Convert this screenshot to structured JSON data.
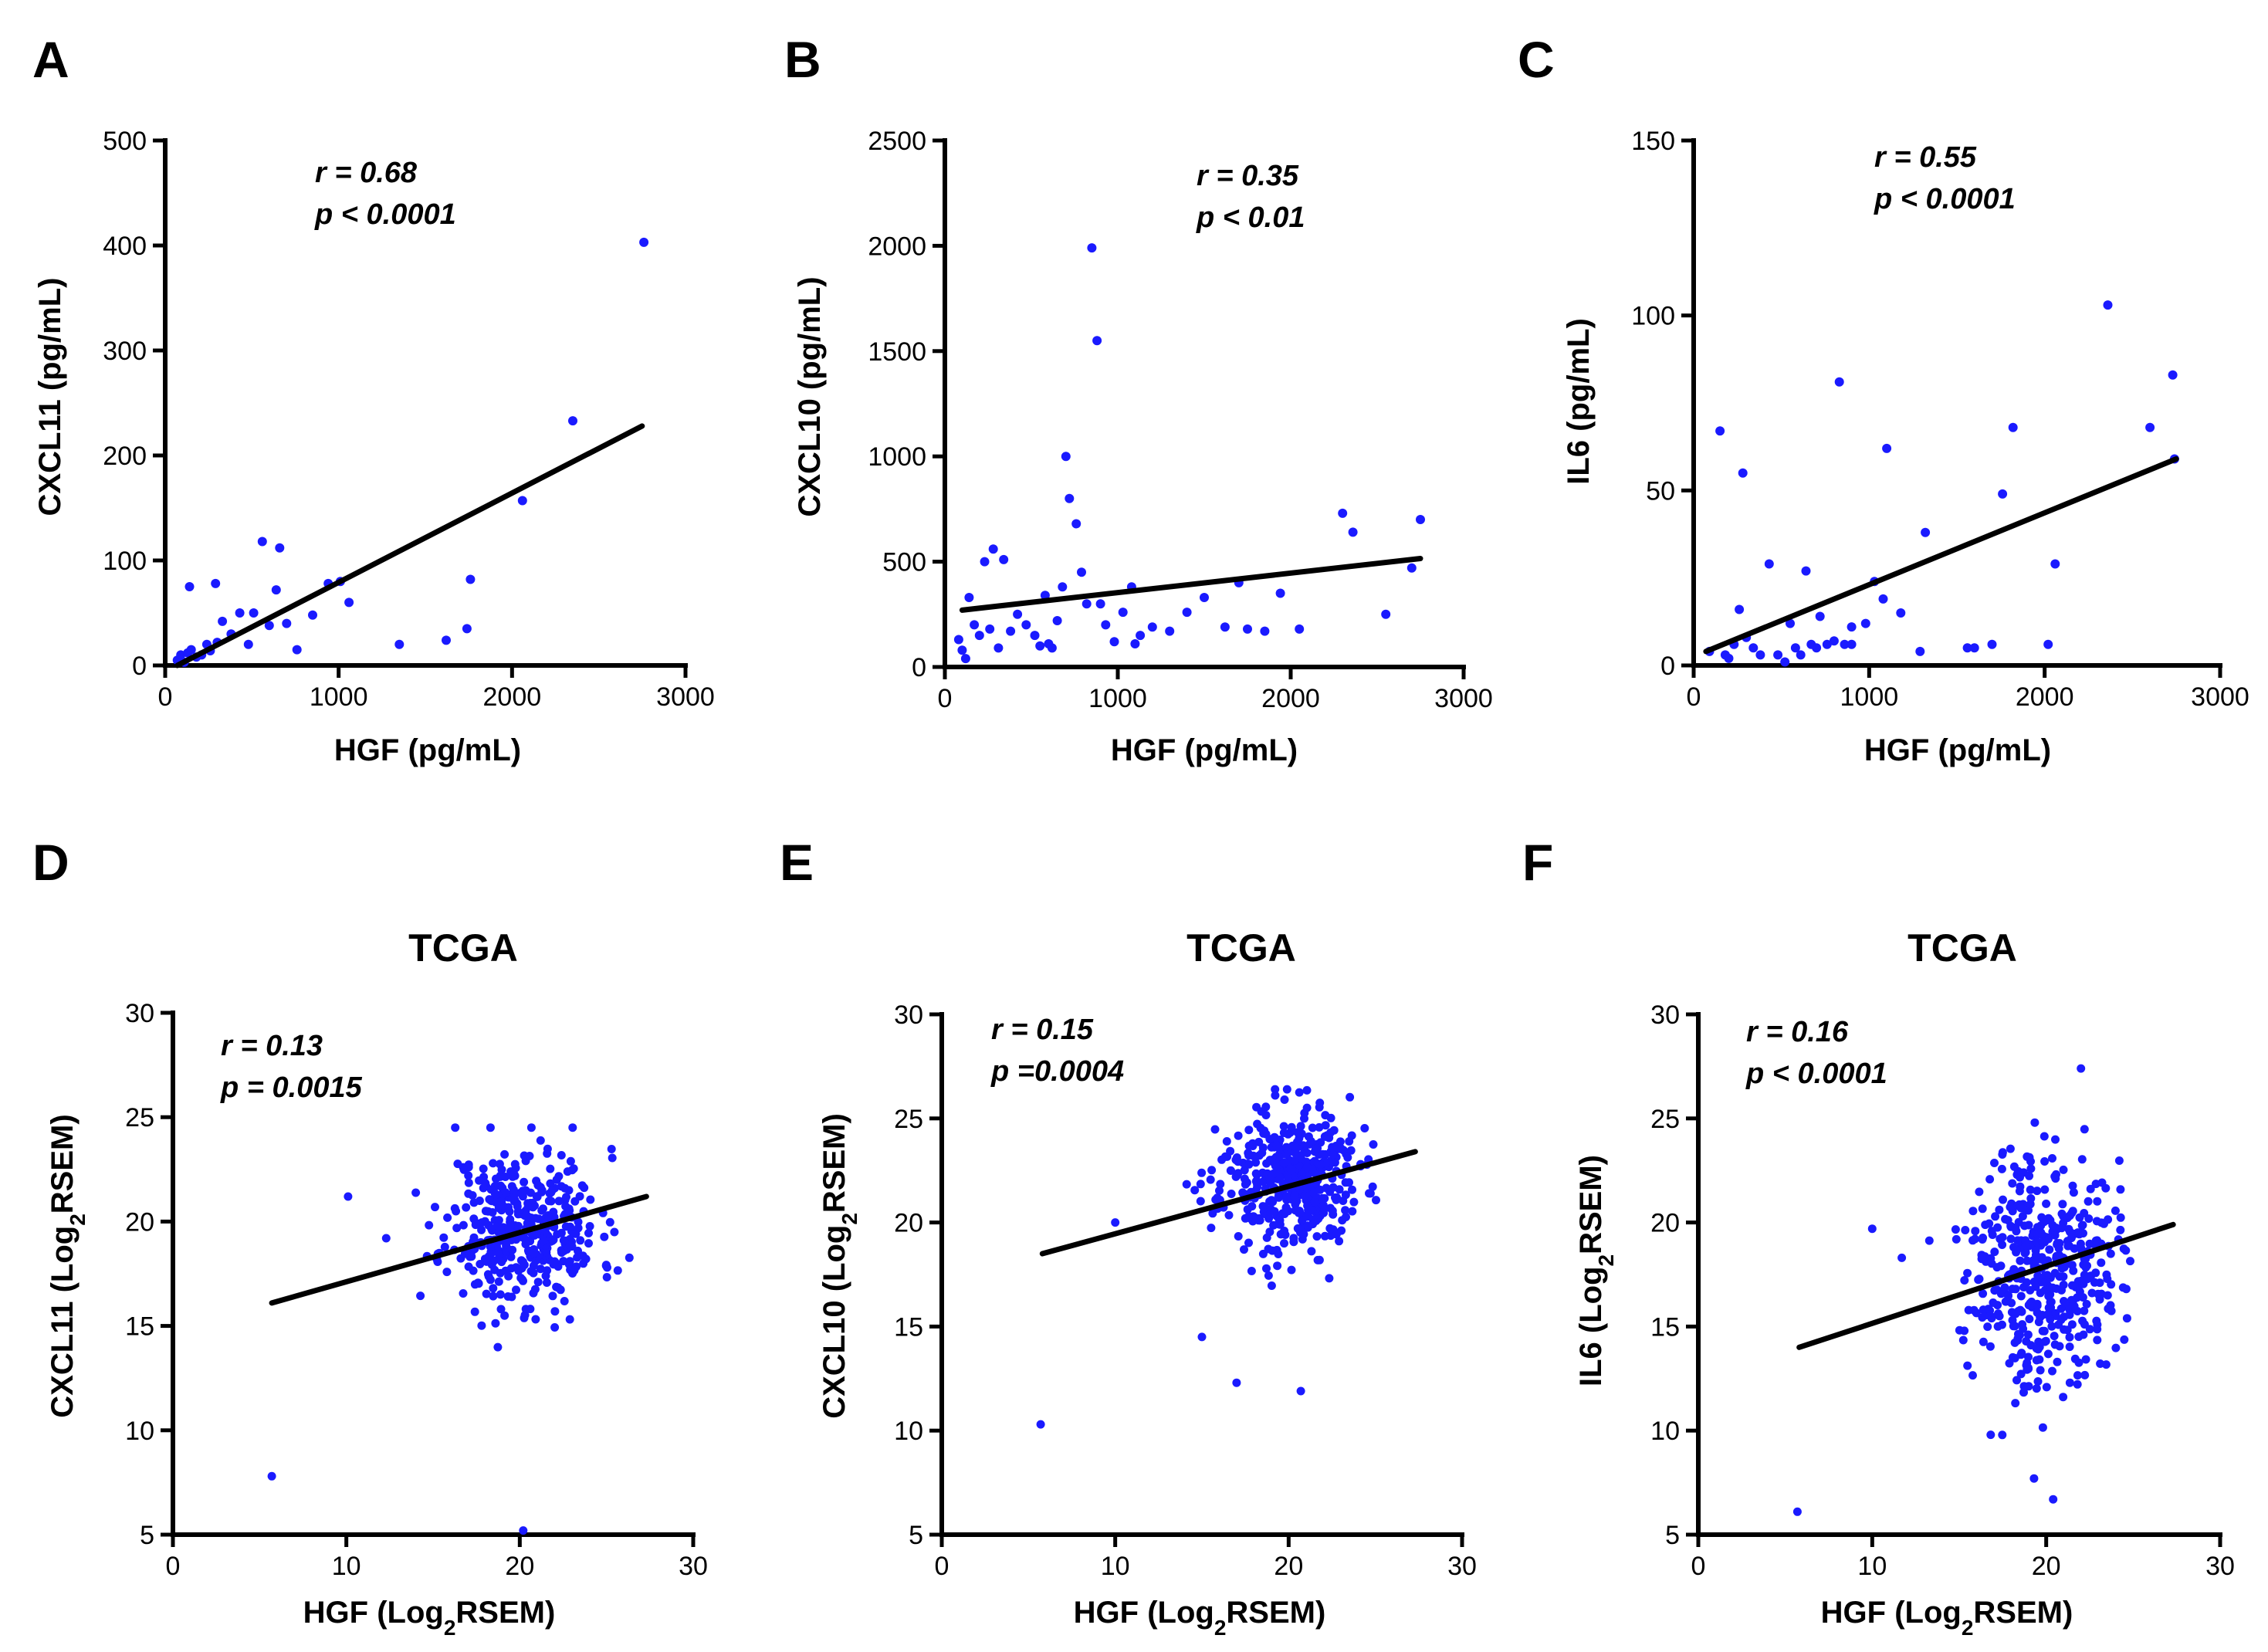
{
  "chart_data": [
    {
      "type": "scatter",
      "panel": "A",
      "title": "",
      "xlabel": "HGF (pg/mL)",
      "ylabel": "CXCL11 (pg/mL)",
      "xlim": [
        0,
        3000
      ],
      "ylim": [
        0,
        500
      ],
      "xticks": [
        0,
        1000,
        2000,
        3000
      ],
      "yticks": [
        0,
        100,
        200,
        300,
        400,
        500
      ],
      "stats": [
        "r = 0.68",
        "p < 0.0001"
      ],
      "regression": [
        [
          70,
          0
        ],
        [
          2750,
          228
        ]
      ],
      "points": [
        [
          70,
          5
        ],
        [
          90,
          10
        ],
        [
          110,
          3
        ],
        [
          130,
          12
        ],
        [
          150,
          15
        ],
        [
          180,
          8
        ],
        [
          210,
          10
        ],
        [
          240,
          20
        ],
        [
          260,
          14
        ],
        [
          300,
          22
        ],
        [
          330,
          42
        ],
        [
          380,
          30
        ],
        [
          430,
          50
        ],
        [
          480,
          20
        ],
        [
          560,
          118
        ],
        [
          600,
          38
        ],
        [
          640,
          72
        ],
        [
          660,
          112
        ],
        [
          700,
          40
        ],
        [
          760,
          15
        ],
        [
          850,
          48
        ],
        [
          940,
          78
        ],
        [
          1010,
          80
        ],
        [
          1060,
          60
        ],
        [
          1350,
          20
        ],
        [
          1620,
          24
        ],
        [
          1740,
          35
        ],
        [
          1760,
          82
        ],
        [
          2060,
          157
        ],
        [
          2350,
          233
        ],
        [
          2760,
          403
        ],
        [
          140,
          75
        ],
        [
          290,
          78
        ],
        [
          510,
          50
        ]
      ]
    },
    {
      "type": "scatter",
      "panel": "B",
      "title": "",
      "xlabel": "HGF (pg/mL)",
      "ylabel": "CXCL10 (pg/mL)",
      "xlim": [
        0,
        3000
      ],
      "ylim": [
        0,
        2500
      ],
      "xticks": [
        0,
        1000,
        2000,
        3000
      ],
      "yticks": [
        0,
        500,
        1000,
        1500,
        2000,
        2500
      ],
      "stats": [
        "r = 0.35",
        "p < 0.01"
      ],
      "regression": [
        [
          100,
          270
        ],
        [
          2750,
          515
        ]
      ],
      "points": [
        [
          80,
          130
        ],
        [
          100,
          80
        ],
        [
          120,
          40
        ],
        [
          140,
          330
        ],
        [
          170,
          200
        ],
        [
          200,
          150
        ],
        [
          230,
          500
        ],
        [
          260,
          180
        ],
        [
          280,
          560
        ],
        [
          310,
          90
        ],
        [
          340,
          510
        ],
        [
          380,
          170
        ],
        [
          420,
          250
        ],
        [
          470,
          200
        ],
        [
          520,
          150
        ],
        [
          550,
          100
        ],
        [
          580,
          340
        ],
        [
          620,
          90
        ],
        [
          650,
          220
        ],
        [
          680,
          380
        ],
        [
          700,
          1000
        ],
        [
          720,
          800
        ],
        [
          760,
          680
        ],
        [
          790,
          450
        ],
        [
          820,
          300
        ],
        [
          850,
          1990
        ],
        [
          880,
          1550
        ],
        [
          930,
          200
        ],
        [
          980,
          120
        ],
        [
          1030,
          260
        ],
        [
          1080,
          380
        ],
        [
          1130,
          150
        ],
        [
          1200,
          190
        ],
        [
          1300,
          170
        ],
        [
          1400,
          260
        ],
        [
          1500,
          330
        ],
        [
          1620,
          190
        ],
        [
          1700,
          400
        ],
        [
          1750,
          180
        ],
        [
          1850,
          170
        ],
        [
          1940,
          350
        ],
        [
          2050,
          180
        ],
        [
          2300,
          730
        ],
        [
          2360,
          640
        ],
        [
          2550,
          250
        ],
        [
          2700,
          470
        ],
        [
          2750,
          700
        ],
        [
          600,
          110
        ],
        [
          900,
          300
        ],
        [
          1100,
          110
        ]
      ]
    },
    {
      "type": "scatter",
      "panel": "C",
      "title": "",
      "xlabel": "HGF (pg/mL)",
      "ylabel": "IL6 (pg/mL)",
      "xlim": [
        0,
        3000
      ],
      "ylim": [
        0,
        150
      ],
      "xticks": [
        0,
        1000,
        2000,
        3000
      ],
      "yticks": [
        0,
        50,
        100,
        150
      ],
      "stats": [
        "r = 0.55",
        "p < 0.0001"
      ],
      "regression": [
        [
          70,
          4
        ],
        [
          2750,
          59
        ]
      ],
      "points": [
        [
          90,
          4
        ],
        [
          150,
          67
        ],
        [
          180,
          3
        ],
        [
          200,
          2
        ],
        [
          230,
          6
        ],
        [
          260,
          16
        ],
        [
          280,
          55
        ],
        [
          300,
          8
        ],
        [
          340,
          5
        ],
        [
          380,
          3
        ],
        [
          430,
          29
        ],
        [
          480,
          3
        ],
        [
          520,
          1
        ],
        [
          550,
          12
        ],
        [
          580,
          5
        ],
        [
          610,
          3
        ],
        [
          640,
          27
        ],
        [
          670,
          6
        ],
        [
          700,
          5
        ],
        [
          720,
          14
        ],
        [
          760,
          6
        ],
        [
          800,
          7
        ],
        [
          830,
          81
        ],
        [
          860,
          6
        ],
        [
          900,
          11
        ],
        [
          980,
          12
        ],
        [
          1030,
          24
        ],
        [
          1080,
          19
        ],
        [
          1100,
          62
        ],
        [
          1180,
          15
        ],
        [
          1290,
          4
        ],
        [
          1320,
          38
        ],
        [
          1600,
          5
        ],
        [
          1700,
          6
        ],
        [
          1760,
          49
        ],
        [
          1820,
          68
        ],
        [
          2020,
          6
        ],
        [
          2060,
          29
        ],
        [
          2360,
          103
        ],
        [
          2600,
          68
        ],
        [
          2730,
          83
        ],
        [
          2740,
          59
        ],
        [
          1560,
          5
        ],
        [
          900,
          6
        ]
      ]
    },
    {
      "type": "scatter",
      "panel": "D",
      "title": "TCGA",
      "xlabel": "HGF (Log2RSEM)",
      "ylabel": "CXCL11 (Log2RSEM)",
      "xlim": [
        0,
        30
      ],
      "ylim": [
        5,
        30
      ],
      "xticks": [
        0,
        10,
        20,
        30
      ],
      "yticks": [
        5,
        10,
        15,
        20,
        25,
        30
      ],
      "stats": [
        "r = 0.13",
        "p = 0.0015"
      ],
      "regression": [
        [
          5.7,
          16.1
        ],
        [
          27.3,
          21.2
        ]
      ],
      "outliers": [
        [
          5.7,
          7.8
        ],
        [
          20.2,
          5.2
        ],
        [
          10.1,
          21.2
        ],
        [
          12.3,
          19.2
        ]
      ],
      "cloud": {
        "n": 420,
        "x_mean": 20.2,
        "x_sd": 2.2,
        "y_mean": 19.7,
        "y_sd": 1.9,
        "x_min": 13.0,
        "x_max": 27.5,
        "y_min": 11.0,
        "y_max": 24.5,
        "seed": 11
      }
    },
    {
      "type": "scatter",
      "panel": "E",
      "title": "TCGA",
      "xlabel": "HGF (Log2RSEM)",
      "ylabel": "CXCL10 (Log2RSEM)",
      "xlim": [
        0,
        30
      ],
      "ylim": [
        5,
        30
      ],
      "xticks": [
        0,
        10,
        20,
        30
      ],
      "yticks": [
        5,
        10,
        15,
        20,
        25,
        30
      ],
      "stats": [
        "r = 0.15",
        "p =0.0004"
      ],
      "regression": [
        [
          5.8,
          18.5
        ],
        [
          27.3,
          23.4
        ]
      ],
      "outliers": [
        [
          5.7,
          10.3
        ],
        [
          17.0,
          12.3
        ],
        [
          20.7,
          11.9
        ],
        [
          15.0,
          14.5
        ],
        [
          10.0,
          20.0
        ]
      ],
      "cloud": {
        "n": 460,
        "x_mean": 20.0,
        "x_sd": 2.0,
        "y_mean": 22.0,
        "y_sd": 1.7,
        "x_min": 13.0,
        "x_max": 27.5,
        "y_min": 14.5,
        "y_max": 26.4,
        "seed": 23
      }
    },
    {
      "type": "scatter",
      "panel": "F",
      "title": "TCGA",
      "xlabel": "HGF (Log2RSEM)",
      "ylabel": "IL6 (Log2RSEM)",
      "xlim": [
        0,
        30
      ],
      "ylim": [
        5,
        30
      ],
      "xticks": [
        0,
        10,
        20,
        30
      ],
      "yticks": [
        5,
        10,
        15,
        20,
        25,
        30
      ],
      "stats": [
        "r = 0.16",
        "p < 0.0001"
      ],
      "regression": [
        [
          5.8,
          14.0
        ],
        [
          27.3,
          19.9
        ]
      ],
      "outliers": [
        [
          5.7,
          6.1
        ],
        [
          20.4,
          6.7
        ],
        [
          19.3,
          7.7
        ],
        [
          10.0,
          19.7
        ],
        [
          11.7,
          18.3
        ],
        [
          22.0,
          27.4
        ]
      ],
      "cloud": {
        "n": 460,
        "x_mean": 19.8,
        "x_sd": 2.1,
        "y_mean": 18.0,
        "y_sd": 2.8,
        "x_min": 13.0,
        "x_max": 27.5,
        "y_min": 8.5,
        "y_max": 26.5,
        "seed": 37
      }
    }
  ]
}
